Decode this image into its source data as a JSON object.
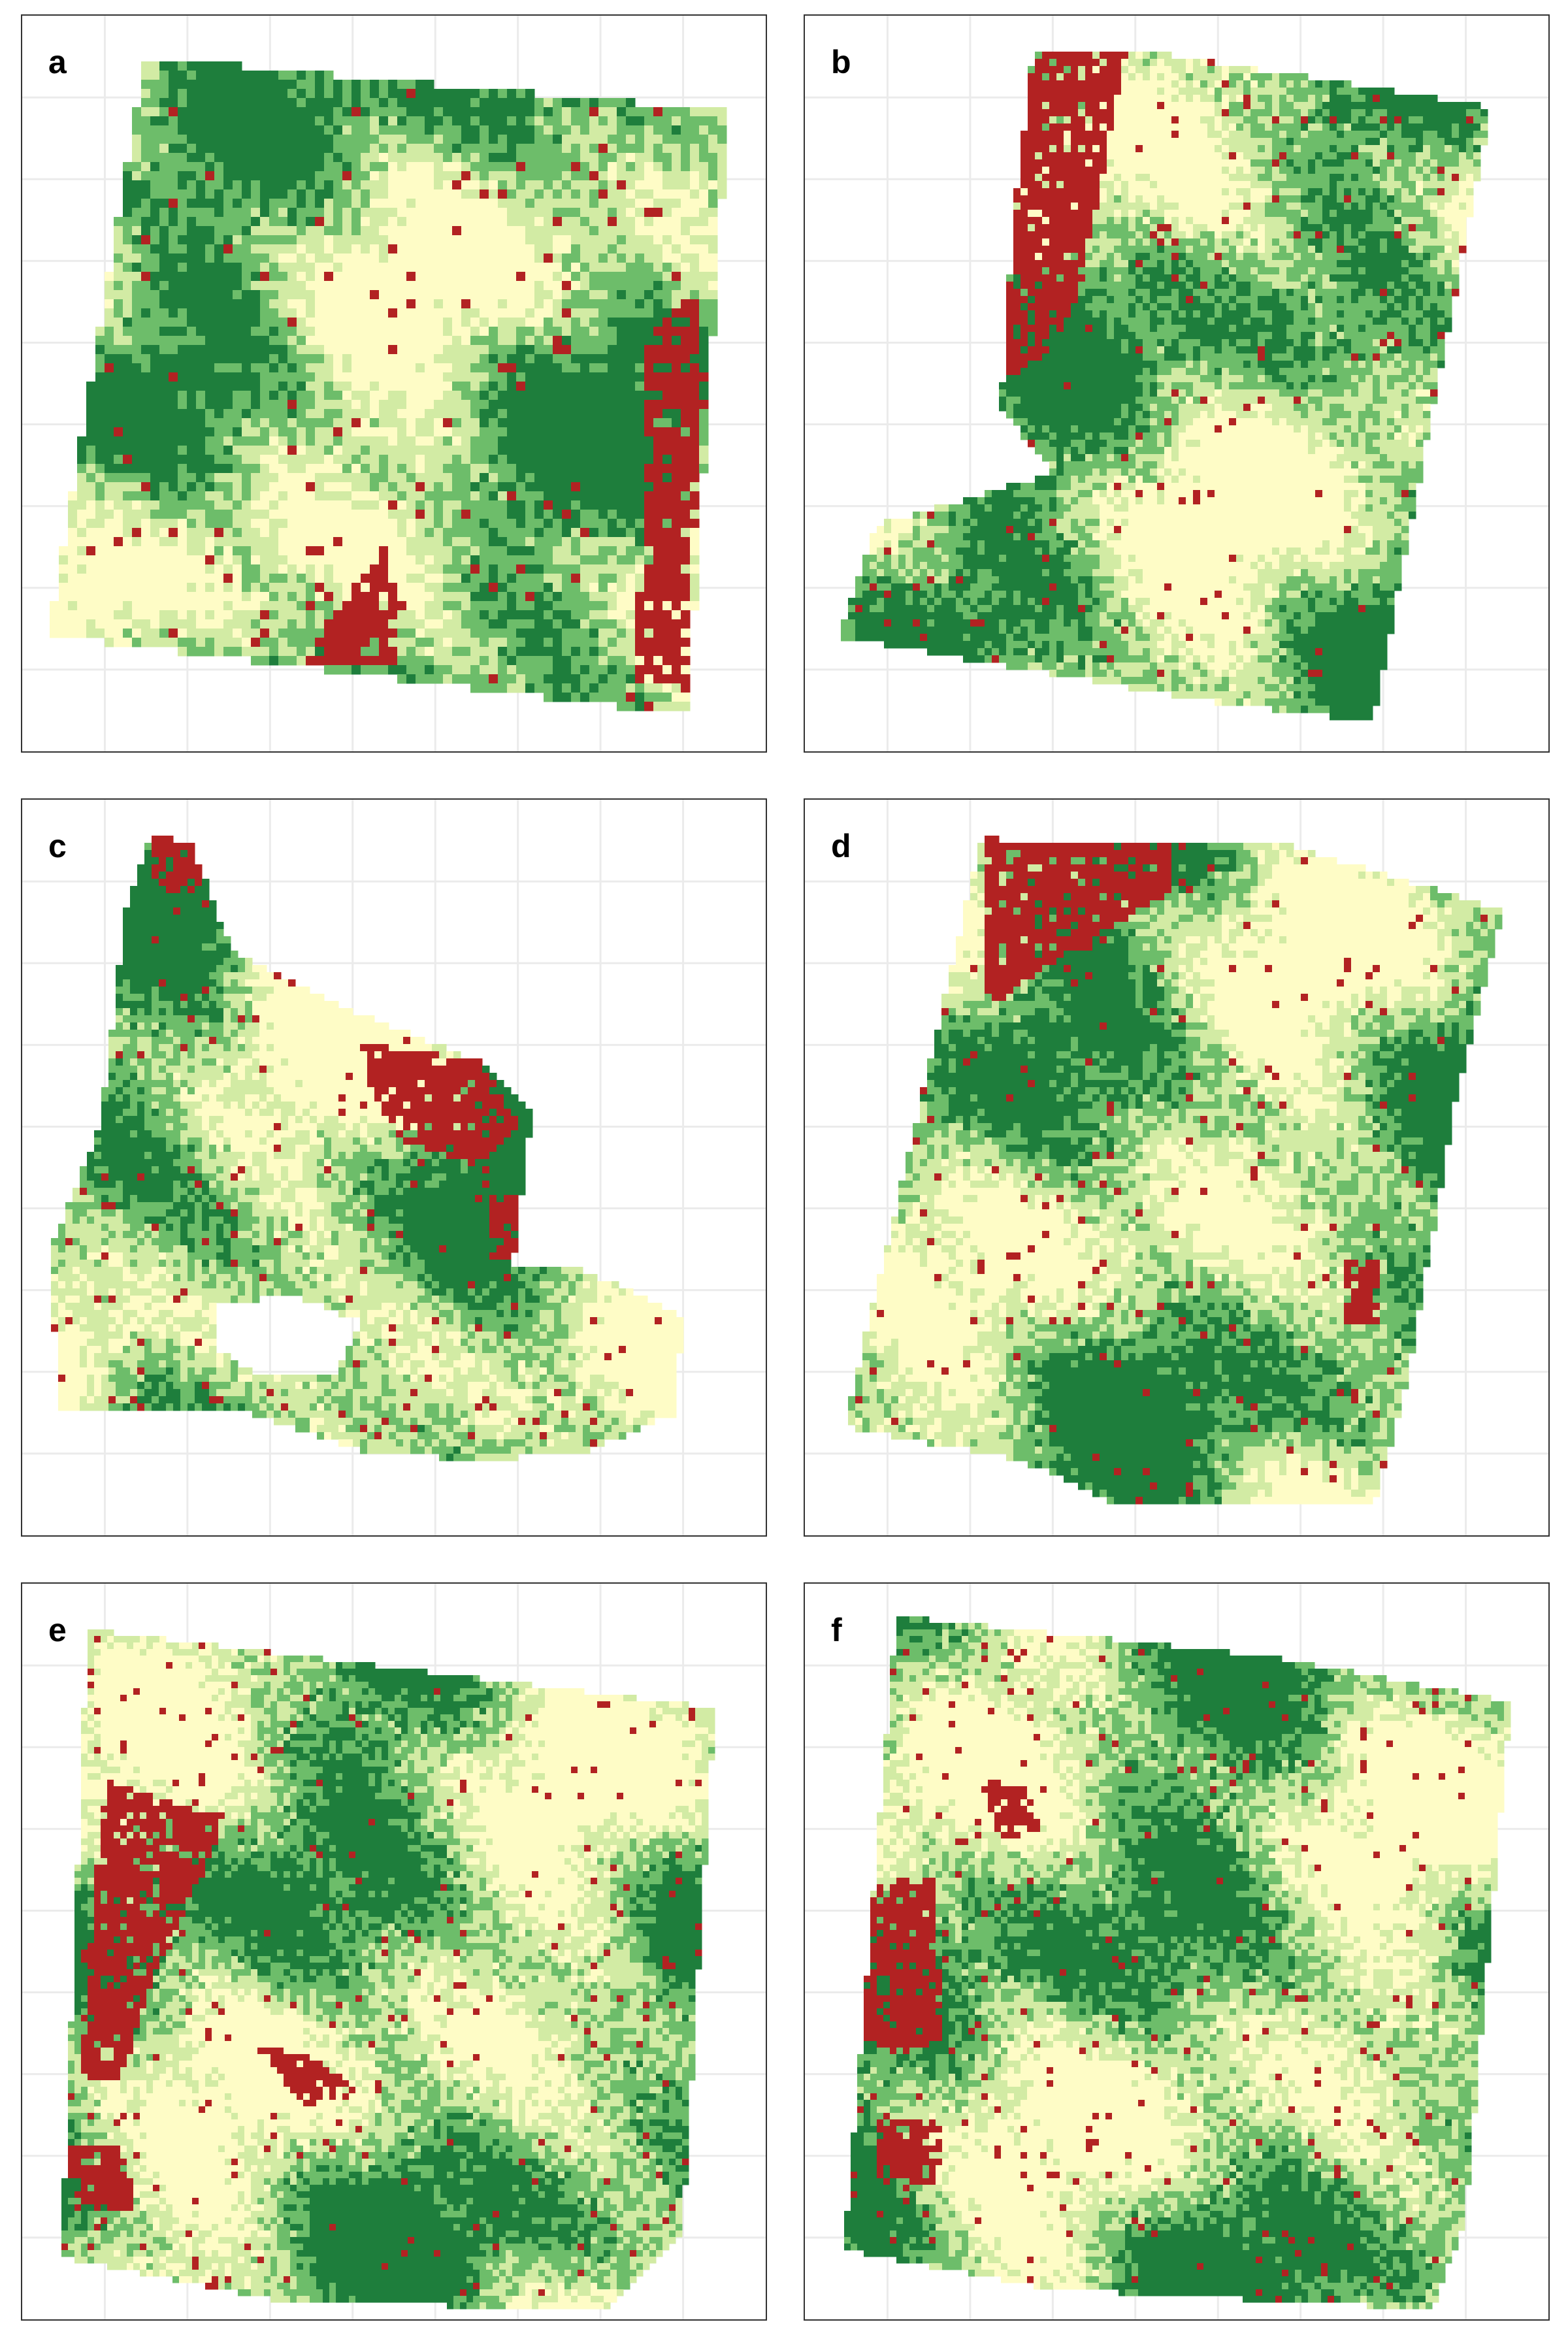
{
  "palette": {
    "dark_green": "#1e7e3c",
    "medium_green": "#6dbd6a",
    "light_green": "#d2eba4",
    "cream": "#fefcc6",
    "red": "#b22222",
    "gridline": "#ebebeb",
    "border": "#333333",
    "background": "#ffffff"
  },
  "panels": [
    {
      "label": "a",
      "shape": "tilted square with red strip along the right edge and red patch at lower center",
      "red_share": "low",
      "dominant_color": "dark_green"
    },
    {
      "label": "b",
      "shape": "slanted parallelogram with large red strip on upper left and tapering lower-left foot",
      "red_share": "medium",
      "dominant_color": "dark_green"
    },
    {
      "label": "c",
      "shape": "irregular field with narrow northern neck, red upper-right lobe and a white hole near the bottom",
      "red_share": "medium",
      "dominant_color": "dark_green"
    },
    {
      "label": "d",
      "shape": "slanted quadrilateral with red block at top left",
      "red_share": "medium",
      "dominant_color": "dark_green"
    },
    {
      "label": "e",
      "shape": "rotated square with red clusters along the left edge",
      "red_share": "medium",
      "dominant_color": "dark_green"
    },
    {
      "label": "f",
      "shape": "rotated square with horizontal streaks and red clusters on the left",
      "red_share": "medium",
      "dominant_color": "dark_green"
    }
  ]
}
